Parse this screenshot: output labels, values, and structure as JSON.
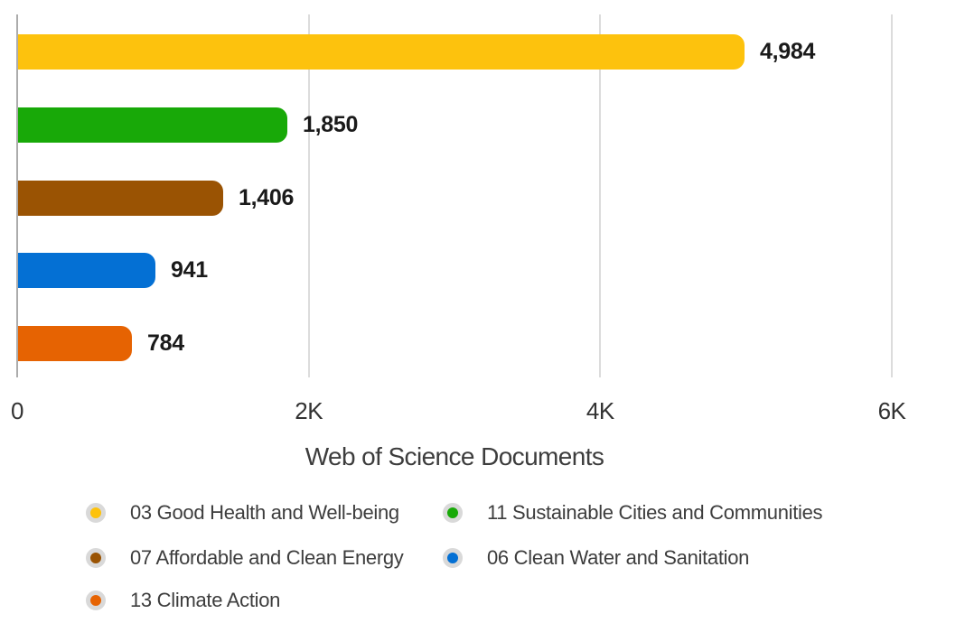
{
  "chart_data": {
    "type": "bar",
    "orientation": "horizontal",
    "categories": [
      "03 Good Health and Well-being",
      "11 Sustainable Cities and Communities",
      "07 Affordable and Clean Energy",
      "06 Clean Water and Sanitation",
      "13 Climate Action"
    ],
    "values": [
      4984,
      1850,
      1406,
      941,
      784
    ],
    "value_labels": [
      "4,984",
      "1,850",
      "1,406",
      "941",
      "784"
    ],
    "colors": [
      "#FDC20D",
      "#18A908",
      "#9A5303",
      "#0470D4",
      "#E66302"
    ],
    "title": "",
    "xlabel": "Web of Science Documents",
    "ylabel": "",
    "xlim": [
      0,
      6000
    ],
    "x_ticks": [
      {
        "value": 0,
        "label": "0"
      },
      {
        "value": 2000,
        "label": "2K"
      },
      {
        "value": 4000,
        "label": "4K"
      },
      {
        "value": 6000,
        "label": "6K"
      }
    ],
    "grid": "vertical-gridlines-on",
    "legend_position": "bottom",
    "legend_columns": 2
  },
  "style_colors": {
    "axis_line": "#ACACAC",
    "gridline": "#DCDCDC",
    "legend_ring": "#D9D9D9",
    "tick_text": "#333333",
    "label_text": "#3d3d3d",
    "value_text": "#1A1A1A",
    "background": "#FFFFFF"
  }
}
